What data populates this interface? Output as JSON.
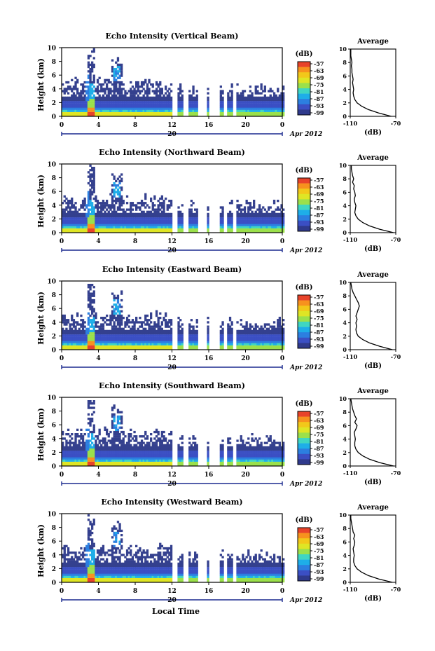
{
  "xlabel": "Local Time",
  "colorbar_unit": "(dB)",
  "colorbar_ticks": [
    "-57",
    "-63",
    "-69",
    "-75",
    "-81",
    "-87",
    "-93",
    "-99"
  ],
  "colorbar_colors": [
    "#e8432a",
    "#f7921e",
    "#f2c81a",
    "#dfe525",
    "#9be04b",
    "#3fd6c2",
    "#1eaee8",
    "#2c7fe0",
    "#3b4fc4",
    "#2f3a8c"
  ],
  "background_color": "#34408e",
  "date": {
    "day": "20",
    "month_year": "Apr 2012"
  },
  "x_ticks": [
    "0",
    "4",
    "8",
    "12",
    "16",
    "20",
    "0"
  ],
  "y_ticks": [
    "0",
    "2",
    "4",
    "6",
    "8",
    "10"
  ],
  "avg_title": "Average",
  "avg_xlabel": "(dB)",
  "avg_x_ticks": [
    "-110",
    "-70"
  ],
  "chart_data": [
    {
      "type": "heatmap",
      "title": "Echo Intensity (Vertical Beam)",
      "ylabel": "Height (km)",
      "xlabel": "",
      "xlim": [
        0,
        24
      ],
      "ylim": [
        0,
        10
      ],
      "zlim": [
        -99,
        -57
      ],
      "avg": {
        "type": "line",
        "xlim": [
          -110,
          -70
        ],
        "height": [
          0,
          0.5,
          1,
          1.5,
          2,
          2.5,
          3,
          3.5,
          4,
          4.5,
          5,
          5.5,
          6,
          6.5,
          7,
          7.5,
          8,
          8.5,
          9,
          9.5,
          10
        ],
        "db": [
          -74,
          -85,
          -94,
          -100,
          -104,
          -106,
          -107,
          -107.5,
          -107,
          -107.5,
          -108,
          -107.5,
          -108,
          -108.5,
          -108.5,
          -109,
          -108.5,
          -109,
          -109.5,
          -109.5,
          -109.5
        ]
      }
    },
    {
      "type": "heatmap",
      "title": "Echo Intensity (Northward Beam)",
      "ylabel": "Height (km)",
      "xlabel": "",
      "xlim": [
        0,
        24
      ],
      "ylim": [
        0,
        10
      ],
      "zlim": [
        -99,
        -57
      ],
      "avg": {
        "type": "line",
        "xlim": [
          -110,
          -70
        ],
        "height": [
          0,
          0.5,
          1,
          1.5,
          2,
          2.5,
          3,
          3.5,
          4,
          4.5,
          5,
          5.5,
          6,
          6.5,
          7,
          7.5,
          8,
          8.5,
          9,
          9.5,
          10
        ],
        "db": [
          -72,
          -84,
          -93,
          -99,
          -103,
          -105,
          -106,
          -105.5,
          -105,
          -106,
          -106.5,
          -105.5,
          -106,
          -107,
          -106.5,
          -108,
          -107,
          -108,
          -108.5,
          -109,
          -109
        ]
      }
    },
    {
      "type": "heatmap",
      "title": "Echo Intensity (Eastward Beam)",
      "ylabel": "Height (km)",
      "xlabel": "",
      "xlim": [
        0,
        24
      ],
      "ylim": [
        0,
        10
      ],
      "zlim": [
        -99,
        -57
      ],
      "avg": {
        "type": "line",
        "xlim": [
          -110,
          -70
        ],
        "height": [
          0,
          0.5,
          1,
          1.5,
          2,
          2.5,
          3,
          3.5,
          4,
          4.5,
          5,
          5.5,
          6,
          6.5,
          7,
          7.5,
          8,
          8.5,
          9,
          9.5,
          10
        ],
        "db": [
          -73,
          -84,
          -93,
          -99,
          -103,
          -104.5,
          -105,
          -104.5,
          -105,
          -104,
          -105,
          -104,
          -103,
          -102,
          -103,
          -104.5,
          -106,
          -107.5,
          -108.5,
          -109,
          -109.5
        ]
      }
    },
    {
      "type": "heatmap",
      "title": "Echo Intensity (Southward Beam)",
      "ylabel": "Height (km)",
      "xlabel": "",
      "xlim": [
        0,
        24
      ],
      "ylim": [
        0,
        10
      ],
      "zlim": [
        -99,
        -57
      ],
      "avg": {
        "type": "line",
        "xlim": [
          -110,
          -70
        ],
        "height": [
          0,
          0.5,
          1,
          1.5,
          2,
          2.5,
          3,
          3.5,
          4,
          4.5,
          5,
          5.5,
          6,
          6.5,
          7,
          7.5,
          8,
          8.5,
          9,
          9.5,
          10
        ],
        "db": [
          -72,
          -84,
          -93,
          -99,
          -103,
          -105,
          -106,
          -106,
          -105.5,
          -106,
          -106.5,
          -105,
          -104,
          -106,
          -104.5,
          -106,
          -107,
          -108,
          -108.5,
          -109,
          -109.5
        ]
      }
    },
    {
      "type": "heatmap",
      "title": "Echo Intensity (Westward Beam)",
      "ylabel": "Height (km)",
      "xlabel": "",
      "xlim": [
        0,
        24
      ],
      "ylim": [
        0,
        10
      ],
      "zlim": [
        -99,
        -57
      ],
      "avg": {
        "type": "line",
        "xlim": [
          -110,
          -70
        ],
        "height": [
          0,
          0.5,
          1,
          1.5,
          2,
          2.5,
          3,
          3.5,
          4,
          4.5,
          5,
          5.5,
          6,
          6.5,
          7,
          7.5,
          8,
          8.5,
          9,
          9.5,
          10
        ],
        "db": [
          -73,
          -85,
          -94,
          -100,
          -104,
          -106,
          -107,
          -107,
          -106.5,
          -107,
          -107.5,
          -106.5,
          -106,
          -107,
          -106,
          -107.5,
          -108,
          -108.5,
          -109,
          -109.5,
          -109.5
        ]
      }
    }
  ]
}
